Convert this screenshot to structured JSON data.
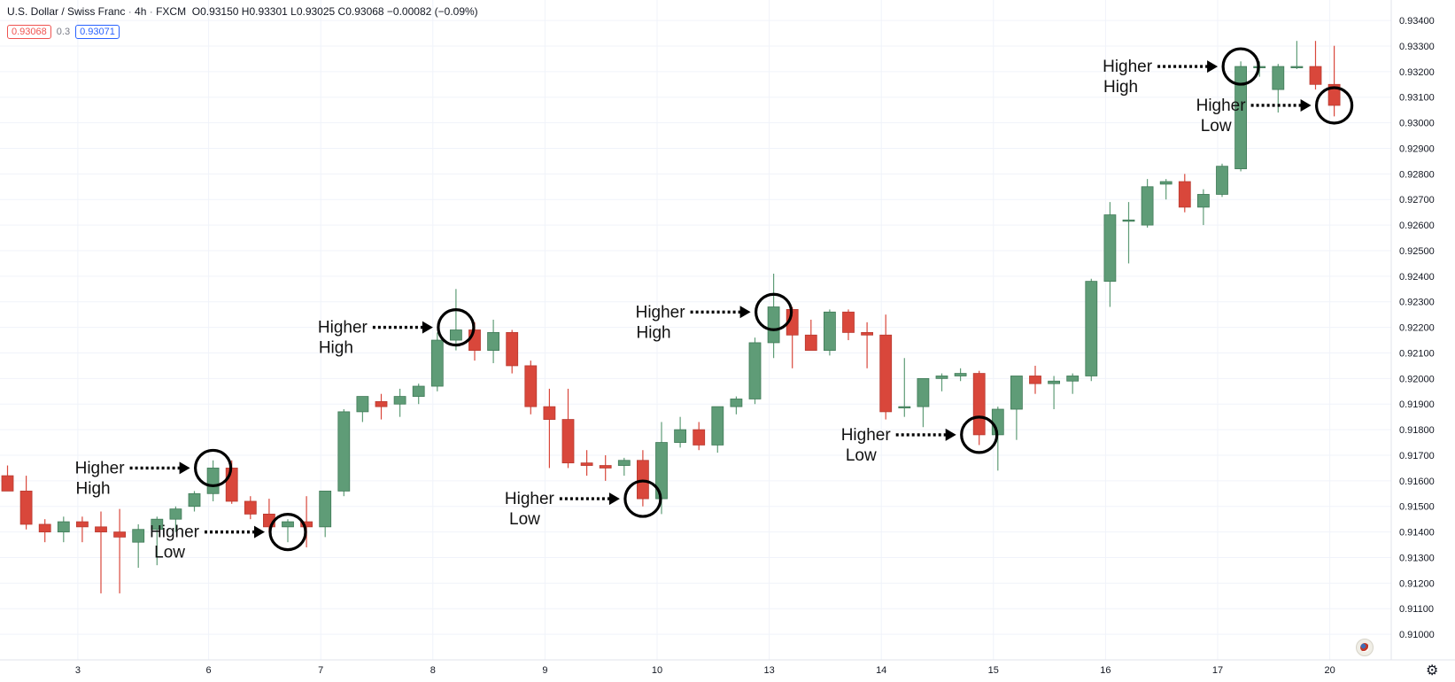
{
  "header": {
    "symbol": "U.S. Dollar / Swiss Franc",
    "interval": "4h",
    "exchange": "FXCM",
    "ohlc": "O0.93150 H0.93301 L0.93025 C0.93068 −0.00082 (−0.09%)",
    "bid": "0.93068",
    "spread": "0.3",
    "ask": "0.93071"
  },
  "colors": {
    "up": "#5f9c77",
    "down": "#d9473b",
    "grid": "#f0f3fa",
    "text": "#131722"
  },
  "icons": {
    "settings": "gear-icon",
    "flag": "us-flag-icon"
  },
  "chart_data": {
    "type": "candlestick",
    "ylim": [
      0.909,
      0.9348
    ],
    "y_ticks": [
      "0.93400",
      "0.93300",
      "0.93200",
      "0.93100",
      "0.93000",
      "0.92900",
      "0.92800",
      "0.92700",
      "0.92600",
      "0.92500",
      "0.92400",
      "0.92300",
      "0.92200",
      "0.92100",
      "0.92000",
      "0.91900",
      "0.91800",
      "0.91700",
      "0.91600",
      "0.91500",
      "0.91400",
      "0.91300",
      "0.91200",
      "0.91100",
      "0.91000"
    ],
    "x_labels": [
      "3",
      "6",
      "7",
      "8",
      "9",
      "10",
      "13",
      "14",
      "15",
      "16",
      "17",
      "20"
    ],
    "candles": [
      {
        "o": 0.9162,
        "h": 0.9166,
        "l": 0.9156,
        "c": 0.9156
      },
      {
        "o": 0.9156,
        "h": 0.9162,
        "l": 0.9141,
        "c": 0.9143
      },
      {
        "o": 0.9143,
        "h": 0.9145,
        "l": 0.9136,
        "c": 0.914
      },
      {
        "o": 0.914,
        "h": 0.9146,
        "l": 0.9136,
        "c": 0.9144
      },
      {
        "o": 0.9144,
        "h": 0.9146,
        "l": 0.9136,
        "c": 0.9142
      },
      {
        "o": 0.9142,
        "h": 0.9148,
        "l": 0.9116,
        "c": 0.914
      },
      {
        "o": 0.914,
        "h": 0.9149,
        "l": 0.9116,
        "c": 0.9138
      },
      {
        "o": 0.9136,
        "h": 0.9143,
        "l": 0.9126,
        "c": 0.9141
      },
      {
        "o": 0.9141,
        "h": 0.9146,
        "l": 0.9127,
        "c": 0.9145
      },
      {
        "o": 0.9145,
        "h": 0.915,
        "l": 0.914,
        "c": 0.9149
      },
      {
        "o": 0.915,
        "h": 0.9156,
        "l": 0.9148,
        "c": 0.9155
      },
      {
        "o": 0.9155,
        "h": 0.9168,
        "l": 0.9152,
        "c": 0.9165
      },
      {
        "o": 0.9165,
        "h": 0.9168,
        "l": 0.9151,
        "c": 0.9152
      },
      {
        "o": 0.9152,
        "h": 0.9154,
        "l": 0.9145,
        "c": 0.9147
      },
      {
        "o": 0.9147,
        "h": 0.9153,
        "l": 0.914,
        "c": 0.9142
      },
      {
        "o": 0.9142,
        "h": 0.9145,
        "l": 0.9136,
        "c": 0.9144
      },
      {
        "o": 0.9144,
        "h": 0.9154,
        "l": 0.9134,
        "c": 0.9142
      },
      {
        "o": 0.9142,
        "h": 0.9156,
        "l": 0.9138,
        "c": 0.9156
      },
      {
        "o": 0.9156,
        "h": 0.9188,
        "l": 0.9154,
        "c": 0.9187
      },
      {
        "o": 0.9187,
        "h": 0.9193,
        "l": 0.9183,
        "c": 0.9193
      },
      {
        "o": 0.9191,
        "h": 0.9194,
        "l": 0.9184,
        "c": 0.9189
      },
      {
        "o": 0.919,
        "h": 0.9196,
        "l": 0.9185,
        "c": 0.9193
      },
      {
        "o": 0.9193,
        "h": 0.9198,
        "l": 0.919,
        "c": 0.9197
      },
      {
        "o": 0.9197,
        "h": 0.9218,
        "l": 0.9195,
        "c": 0.9215
      },
      {
        "o": 0.9215,
        "h": 0.9235,
        "l": 0.9211,
        "c": 0.9219
      },
      {
        "o": 0.9219,
        "h": 0.9222,
        "l": 0.9207,
        "c": 0.9211
      },
      {
        "o": 0.9211,
        "h": 0.9223,
        "l": 0.9206,
        "c": 0.9218
      },
      {
        "o": 0.9218,
        "h": 0.9219,
        "l": 0.9202,
        "c": 0.9205
      },
      {
        "o": 0.9205,
        "h": 0.9207,
        "l": 0.9186,
        "c": 0.9189
      },
      {
        "o": 0.9189,
        "h": 0.9196,
        "l": 0.9165,
        "c": 0.9184
      },
      {
        "o": 0.9184,
        "h": 0.9196,
        "l": 0.9165,
        "c": 0.9167
      },
      {
        "o": 0.9167,
        "h": 0.9172,
        "l": 0.9162,
        "c": 0.9166
      },
      {
        "o": 0.9166,
        "h": 0.917,
        "l": 0.916,
        "c": 0.9165
      },
      {
        "o": 0.9166,
        "h": 0.9169,
        "l": 0.9162,
        "c": 0.9168
      },
      {
        "o": 0.9168,
        "h": 0.9172,
        "l": 0.915,
        "c": 0.9153
      },
      {
        "o": 0.9153,
        "h": 0.9183,
        "l": 0.9147,
        "c": 0.9175
      },
      {
        "o": 0.9175,
        "h": 0.9185,
        "l": 0.9173,
        "c": 0.918
      },
      {
        "o": 0.918,
        "h": 0.9183,
        "l": 0.9172,
        "c": 0.9174
      },
      {
        "o": 0.9174,
        "h": 0.9189,
        "l": 0.9171,
        "c": 0.9189
      },
      {
        "o": 0.9189,
        "h": 0.9193,
        "l": 0.9186,
        "c": 0.9192
      },
      {
        "o": 0.9192,
        "h": 0.9216,
        "l": 0.919,
        "c": 0.9214
      },
      {
        "o": 0.9214,
        "h": 0.9241,
        "l": 0.9208,
        "c": 0.9228
      },
      {
        "o": 0.9227,
        "h": 0.9228,
        "l": 0.9204,
        "c": 0.9217
      },
      {
        "o": 0.9217,
        "h": 0.9223,
        "l": 0.9211,
        "c": 0.9211
      },
      {
        "o": 0.9211,
        "h": 0.9227,
        "l": 0.9209,
        "c": 0.9226
      },
      {
        "o": 0.9226,
        "h": 0.9227,
        "l": 0.9215,
        "c": 0.9218
      },
      {
        "o": 0.9218,
        "h": 0.9222,
        "l": 0.9204,
        "c": 0.9217
      },
      {
        "o": 0.9217,
        "h": 0.9225,
        "l": 0.9184,
        "c": 0.9187
      },
      {
        "o": 0.9189,
        "h": 0.9208,
        "l": 0.9185,
        "c": 0.9189
      },
      {
        "o": 0.9189,
        "h": 0.92,
        "l": 0.9181,
        "c": 0.92
      },
      {
        "o": 0.92,
        "h": 0.9202,
        "l": 0.9195,
        "c": 0.9201
      },
      {
        "o": 0.9201,
        "h": 0.9204,
        "l": 0.9199,
        "c": 0.9202
      },
      {
        "o": 0.9202,
        "h": 0.9203,
        "l": 0.9174,
        "c": 0.9178
      },
      {
        "o": 0.9178,
        "h": 0.9189,
        "l": 0.9164,
        "c": 0.9188
      },
      {
        "o": 0.9188,
        "h": 0.9201,
        "l": 0.9176,
        "c": 0.9201
      },
      {
        "o": 0.9201,
        "h": 0.9205,
        "l": 0.9194,
        "c": 0.9198
      },
      {
        "o": 0.9198,
        "h": 0.9201,
        "l": 0.9188,
        "c": 0.9199
      },
      {
        "o": 0.9199,
        "h": 0.9202,
        "l": 0.9194,
        "c": 0.9201
      },
      {
        "o": 0.9201,
        "h": 0.9239,
        "l": 0.9199,
        "c": 0.9238
      },
      {
        "o": 0.9238,
        "h": 0.9269,
        "l": 0.9228,
        "c": 0.9264
      },
      {
        "o": 0.9262,
        "h": 0.9269,
        "l": 0.9245,
        "c": 0.9262
      },
      {
        "o": 0.926,
        "h": 0.9278,
        "l": 0.9259,
        "c": 0.9275
      },
      {
        "o": 0.9276,
        "h": 0.9278,
        "l": 0.927,
        "c": 0.9277
      },
      {
        "o": 0.9277,
        "h": 0.928,
        "l": 0.9265,
        "c": 0.9267
      },
      {
        "o": 0.9267,
        "h": 0.9274,
        "l": 0.926,
        "c": 0.9272
      },
      {
        "o": 0.9272,
        "h": 0.9284,
        "l": 0.9271,
        "c": 0.9283
      },
      {
        "o": 0.9282,
        "h": 0.9324,
        "l": 0.9281,
        "c": 0.9322
      },
      {
        "o": 0.9322,
        "h": 0.9324,
        "l": 0.9318,
        "c": 0.9322
      },
      {
        "o": 0.9313,
        "h": 0.9323,
        "l": 0.9304,
        "c": 0.9322
      },
      {
        "o": 0.9322,
        "h": 0.9332,
        "l": 0.9321,
        "c": 0.9322
      },
      {
        "o": 0.9322,
        "h": 0.9332,
        "l": 0.9313,
        "c": 0.9315
      },
      {
        "o": 0.9315,
        "h": 0.93301,
        "l": 0.93025,
        "c": 0.93068
      }
    ],
    "annotations": [
      {
        "line1": "Higher",
        "line2": "High",
        "candle": 11,
        "price": 0.9165
      },
      {
        "line1": "Higher",
        "line2": "Low",
        "candle": 15,
        "price": 0.914
      },
      {
        "line1": "Higher",
        "line2": "High",
        "candle": 24,
        "price": 0.922
      },
      {
        "line1": "Higher",
        "line2": "Low",
        "candle": 34,
        "price": 0.9153
      },
      {
        "line1": "Higher",
        "line2": "High",
        "candle": 41,
        "price": 0.9226
      },
      {
        "line1": "Higher",
        "line2": "Low",
        "candle": 52,
        "price": 0.9178
      },
      {
        "line1": "Higher",
        "line2": "High",
        "candle": 66,
        "price": 0.9322
      },
      {
        "line1": "Higher",
        "line2": "Low",
        "candle": 71,
        "price": 0.93068
      }
    ]
  }
}
